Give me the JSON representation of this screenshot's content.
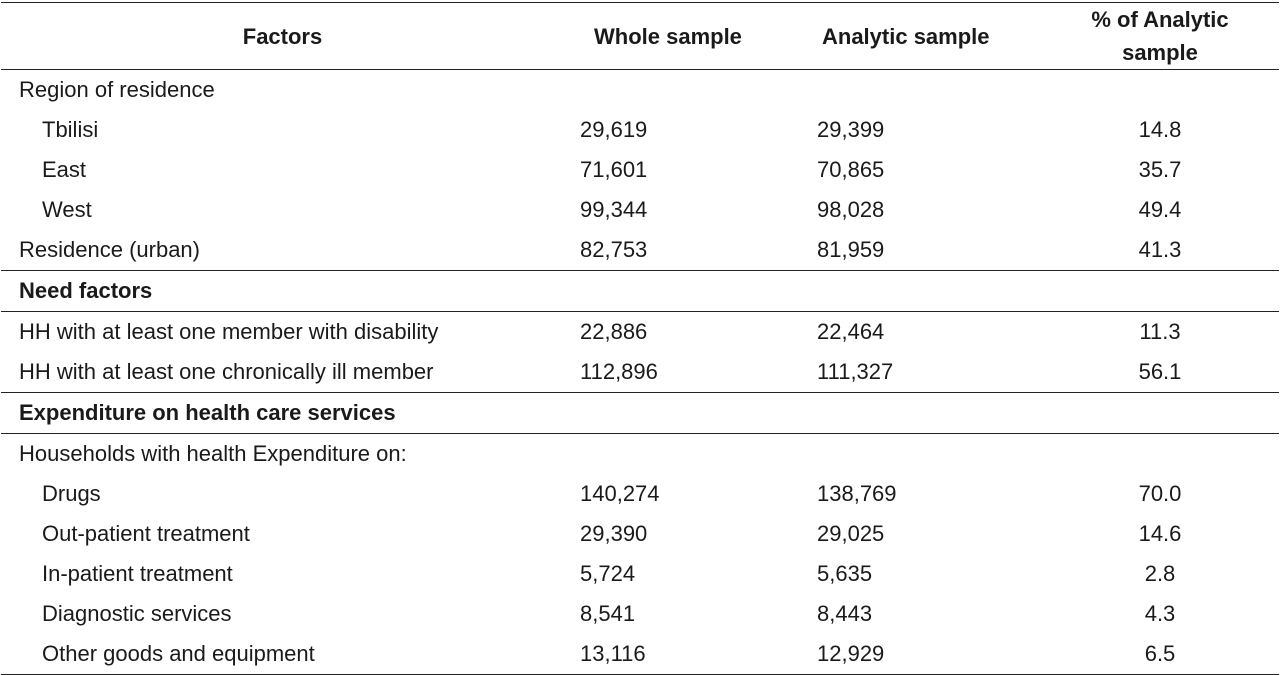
{
  "header": {
    "factors": "Factors",
    "whole": "Whole sample",
    "analytic": "Analytic sample",
    "pct_line1": "% of Analytic",
    "pct_line2": "sample"
  },
  "rows": [
    {
      "label": "Region of residence",
      "whole": "",
      "analytic": "",
      "pct": ""
    },
    {
      "label": "Tbilisi",
      "whole": "29,619",
      "analytic": "29,399",
      "pct": "14.8"
    },
    {
      "label": "East",
      "whole": "71,601",
      "analytic": "70,865",
      "pct": "35.7"
    },
    {
      "label": "West",
      "whole": "99,344",
      "analytic": "98,028",
      "pct": "49.4"
    },
    {
      "label": "Residence (urban)",
      "whole": "82,753",
      "analytic": "81,959",
      "pct": "41.3"
    },
    {
      "label": "Need factors",
      "whole": "",
      "analytic": "",
      "pct": ""
    },
    {
      "label": "HH with at least one member with disability",
      "whole": "22,886",
      "analytic": "22,464",
      "pct": "11.3"
    },
    {
      "label": "HH with at least one chronically ill member",
      "whole": "112,896",
      "analytic": "111,327",
      "pct": "56.1"
    },
    {
      "label": "Expenditure on health care services",
      "whole": "",
      "analytic": "",
      "pct": ""
    },
    {
      "label": "Households with health Expenditure on:",
      "whole": "",
      "analytic": "",
      "pct": ""
    },
    {
      "label": "Drugs",
      "whole": "140,274",
      "analytic": "138,769",
      "pct": "70.0"
    },
    {
      "label": "Out-patient treatment",
      "whole": "29,390",
      "analytic": "29,025",
      "pct": "14.6"
    },
    {
      "label": "In-patient treatment",
      "whole": "5,724",
      "analytic": "5,635",
      "pct": "2.8"
    },
    {
      "label": "Diagnostic services",
      "whole": "8,541",
      "analytic": "8,443",
      "pct": "4.3"
    },
    {
      "label": "Other goods and equipment",
      "whole": "13,116",
      "analytic": "12,929",
      "pct": "6.5"
    }
  ]
}
